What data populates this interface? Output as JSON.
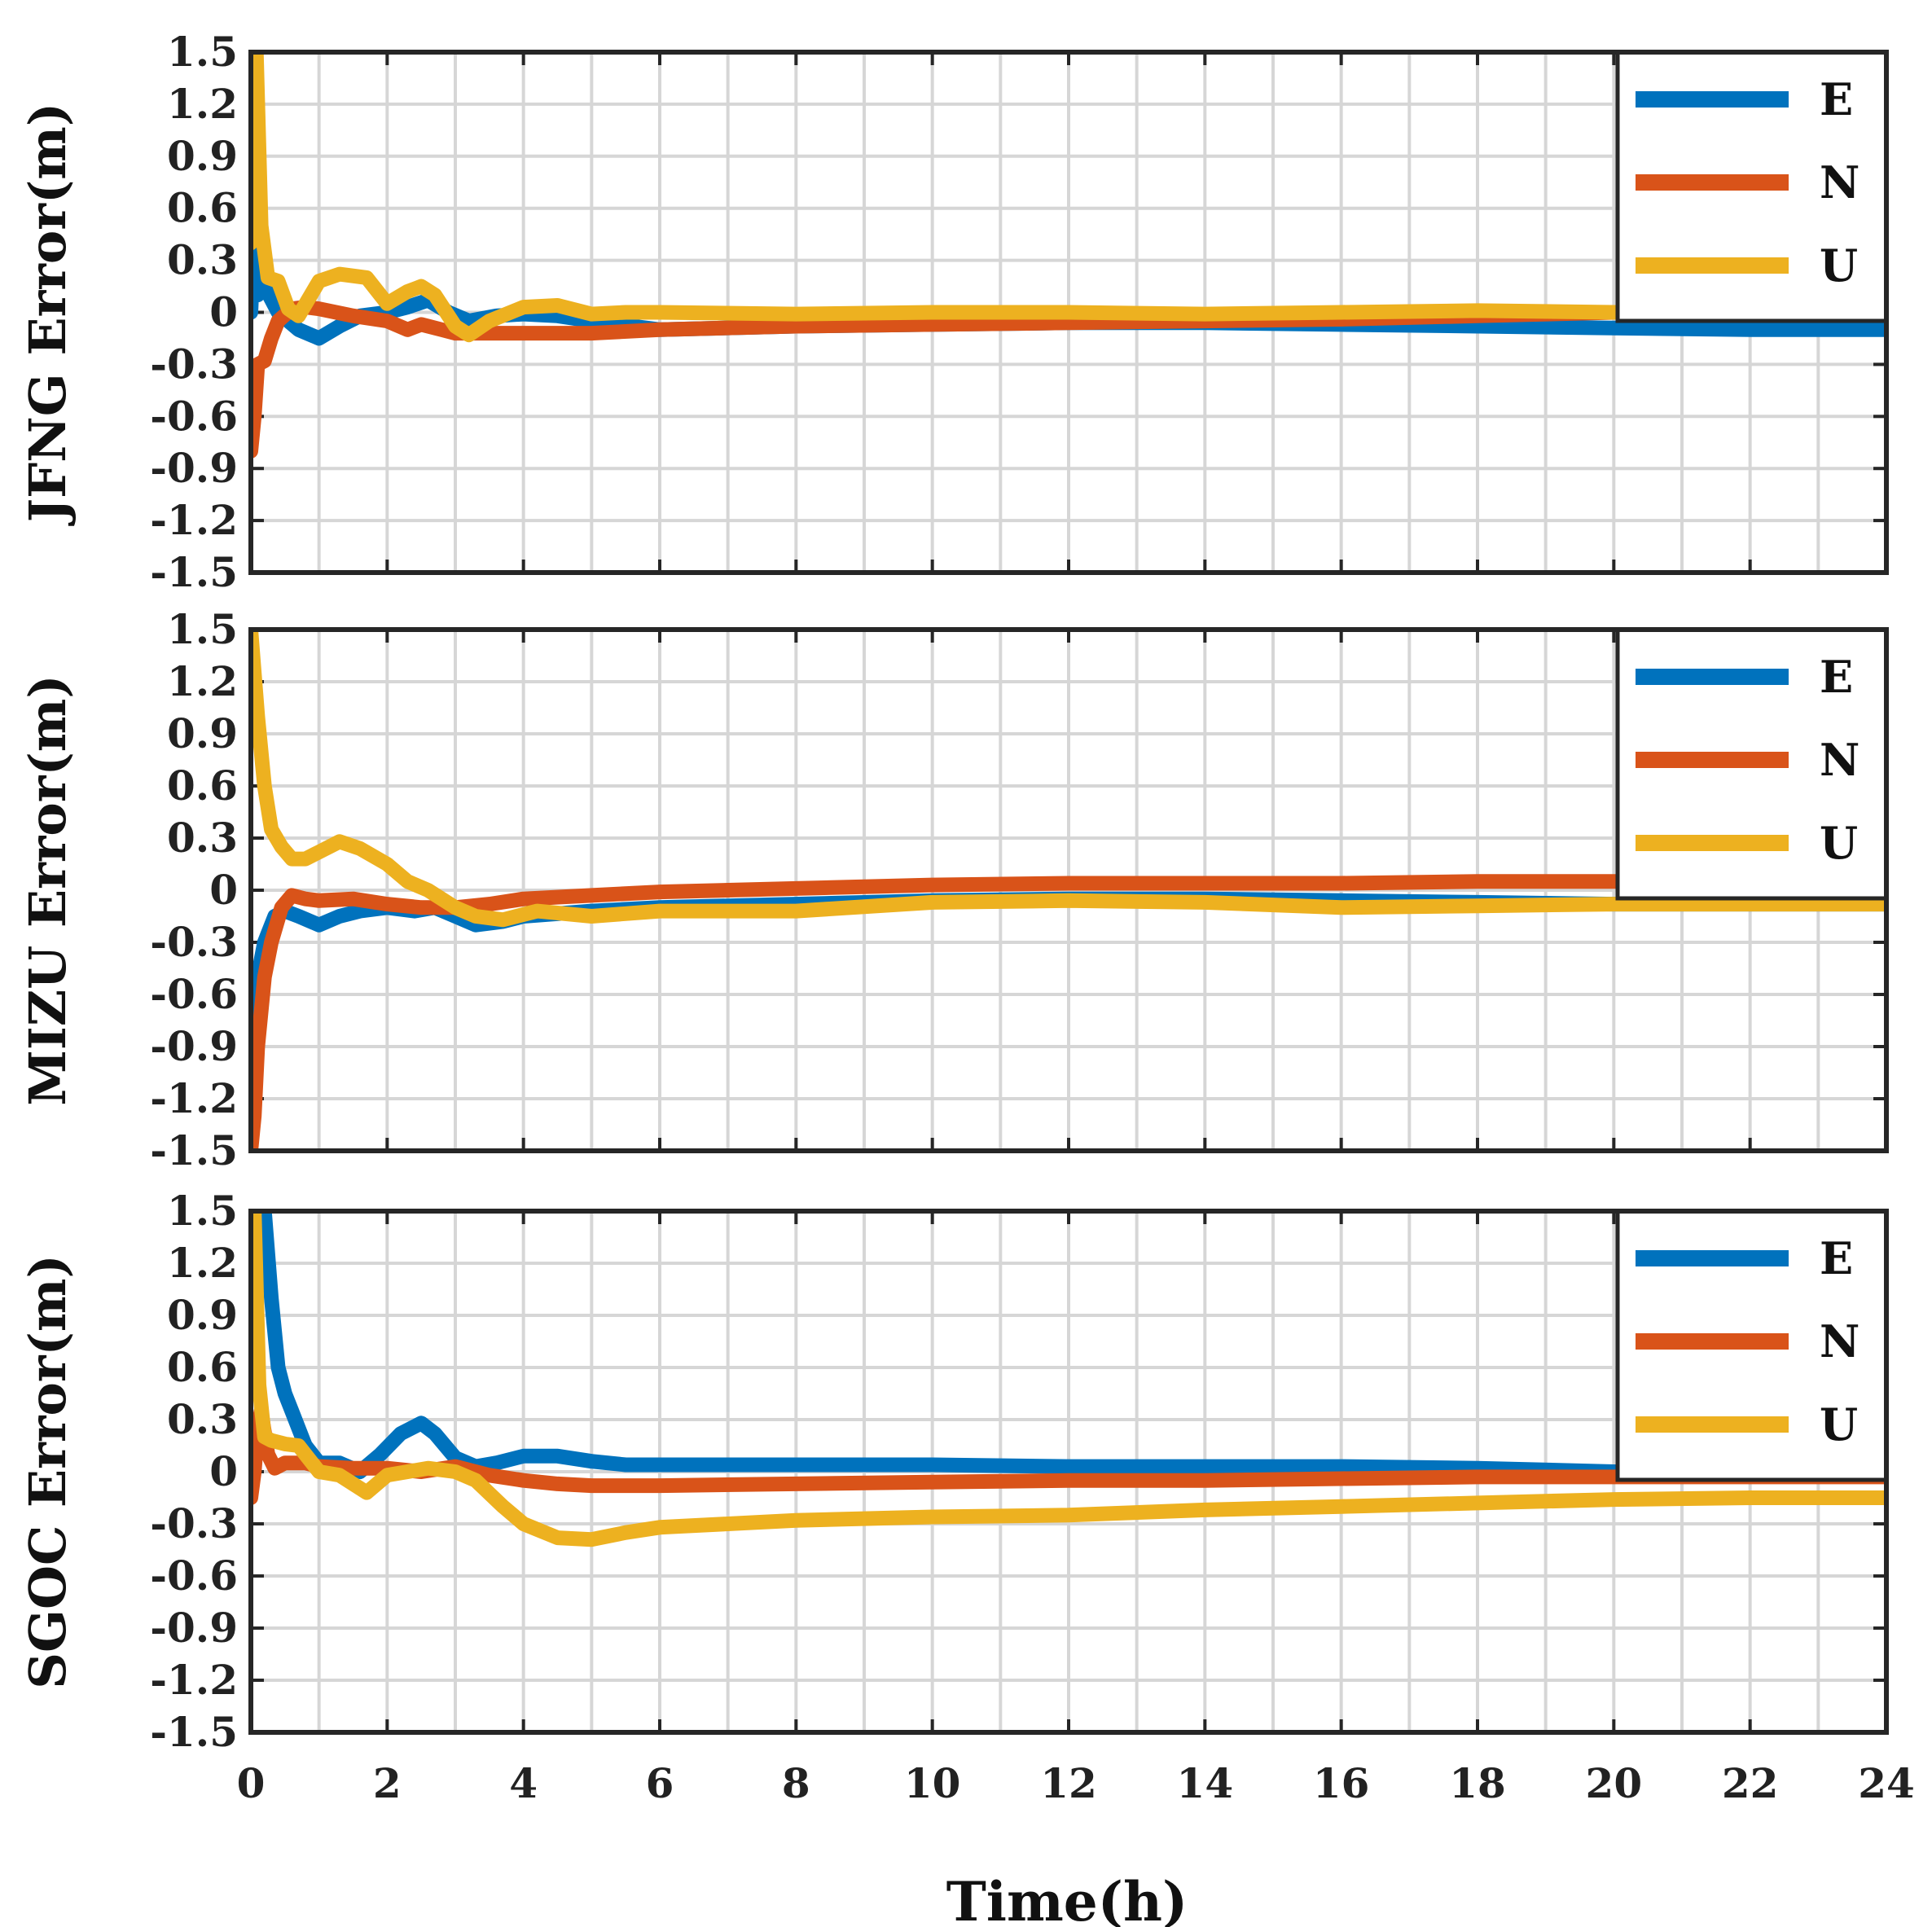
{
  "chart_data": [
    {
      "type": "line",
      "ylabel": "JFNG Error(m)",
      "xlim": [
        0,
        24
      ],
      "ylim": [
        -1.5,
        1.5
      ],
      "yticks": [
        1.5,
        1.2,
        0.9,
        0.6,
        0.3,
        0,
        -0.3,
        -0.6,
        -0.9,
        -1.2,
        -1.5
      ],
      "yticklabels": [
        "1.5",
        "1.2",
        "0.9",
        "0.6",
        "0.3",
        "0",
        "-0.3",
        "-0.6",
        "-0.9",
        "-1.2",
        "-1.5"
      ],
      "grid": true,
      "legend": "top-right",
      "series": [
        {
          "name": "E",
          "x": [
            0,
            0.05,
            0.1,
            0.2,
            0.4,
            0.7,
            1.0,
            1.3,
            1.6,
            2.0,
            2.3,
            2.6,
            2.9,
            3.2,
            3.6,
            4.0,
            4.5,
            5.0,
            6.0,
            8.0,
            10.0,
            12.0,
            14.0,
            16.0,
            18.0,
            20.0,
            22.0,
            24.0
          ],
          "y": [
            0.0,
            0.45,
            0.1,
            0.15,
            0.0,
            -0.1,
            -0.15,
            -0.08,
            -0.02,
            0.0,
            0.03,
            0.07,
            0.0,
            -0.05,
            -0.02,
            -0.01,
            -0.02,
            -0.05,
            -0.1,
            -0.08,
            -0.07,
            -0.06,
            -0.06,
            -0.07,
            -0.08,
            -0.09,
            -0.1,
            -0.1
          ]
        },
        {
          "name": "N",
          "x": [
            0,
            0.05,
            0.1,
            0.2,
            0.3,
            0.4,
            0.6,
            0.8,
            1.0,
            1.5,
            2.0,
            2.3,
            2.5,
            2.8,
            3.0,
            3.3,
            3.7,
            4.0,
            5.0,
            6.0,
            8.0,
            10.0,
            12.0,
            14.0,
            16.0,
            18.0,
            20.0,
            24.0
          ],
          "y": [
            -0.8,
            -0.6,
            -0.3,
            -0.28,
            -0.15,
            -0.05,
            0.02,
            0.03,
            0.02,
            -0.02,
            -0.05,
            -0.1,
            -0.07,
            -0.1,
            -0.12,
            -0.12,
            -0.12,
            -0.12,
            -0.12,
            -0.1,
            -0.08,
            -0.07,
            -0.06,
            -0.05,
            -0.04,
            -0.02,
            0.0,
            0.0
          ]
        },
        {
          "name": "U",
          "x": [
            0,
            0.08,
            0.15,
            0.25,
            0.4,
            0.55,
            0.7,
            1.0,
            1.3,
            1.7,
            2.0,
            2.3,
            2.5,
            2.7,
            3.0,
            3.2,
            3.5,
            4.0,
            4.5,
            5.0,
            5.5,
            6.0,
            8.0,
            10.0,
            12.0,
            14.0,
            16.0,
            18.0,
            20.0,
            24.0
          ],
          "y": [
            0.4,
            1.5,
            0.5,
            0.2,
            0.18,
            0.02,
            -0.02,
            0.18,
            0.22,
            0.2,
            0.05,
            0.12,
            0.15,
            0.1,
            -0.08,
            -0.13,
            -0.05,
            0.03,
            0.04,
            -0.01,
            0.0,
            0.0,
            -0.01,
            0.0,
            0.0,
            -0.01,
            0.0,
            0.01,
            0.0,
            0.0
          ]
        }
      ]
    },
    {
      "type": "line",
      "ylabel": "MIZU Error(m)",
      "xlim": [
        0,
        24
      ],
      "ylim": [
        -1.5,
        1.5
      ],
      "yticks": [
        1.5,
        1.2,
        0.9,
        0.6,
        0.3,
        0,
        -0.3,
        -0.6,
        -0.9,
        -1.2,
        -1.5
      ],
      "yticklabels": [
        "1.5",
        "1.2",
        "0.9",
        "0.6",
        "0.3",
        "0",
        "-0.3",
        "-0.6",
        "-0.9",
        "-1.2",
        "-1.5"
      ],
      "grid": true,
      "legend": "top-right",
      "series": [
        {
          "name": "E",
          "x": [
            0,
            0.05,
            0.1,
            0.2,
            0.35,
            0.5,
            0.7,
            1.0,
            1.3,
            1.6,
            2.0,
            2.4,
            2.7,
            3.0,
            3.3,
            3.7,
            4.0,
            5.0,
            6.0,
            8.0,
            10.0,
            12.0,
            14.0,
            16.0,
            18.0,
            20.0,
            24.0
          ],
          "y": [
            -0.9,
            -1.2,
            -0.5,
            -0.3,
            -0.15,
            -0.12,
            -0.15,
            -0.2,
            -0.15,
            -0.12,
            -0.1,
            -0.12,
            -0.1,
            -0.15,
            -0.2,
            -0.18,
            -0.15,
            -0.12,
            -0.1,
            -0.08,
            -0.06,
            -0.05,
            -0.05,
            -0.06,
            -0.07,
            -0.08,
            -0.08
          ]
        },
        {
          "name": "N",
          "x": [
            0,
            0.05,
            0.1,
            0.2,
            0.3,
            0.45,
            0.6,
            0.8,
            1.0,
            1.5,
            2.0,
            2.5,
            3.0,
            3.5,
            4.0,
            5.0,
            6.0,
            8.0,
            10.0,
            12.0,
            14.0,
            16.0,
            18.0,
            20.0,
            24.0
          ],
          "y": [
            -1.5,
            -1.3,
            -0.9,
            -0.5,
            -0.3,
            -0.1,
            -0.03,
            -0.05,
            -0.06,
            -0.05,
            -0.08,
            -0.1,
            -0.1,
            -0.08,
            -0.05,
            -0.03,
            -0.01,
            0.01,
            0.03,
            0.04,
            0.04,
            0.04,
            0.05,
            0.05,
            0.05
          ]
        },
        {
          "name": "U",
          "x": [
            0,
            0.1,
            0.2,
            0.3,
            0.45,
            0.6,
            0.8,
            1.0,
            1.3,
            1.6,
            2.0,
            2.3,
            2.6,
            3.0,
            3.3,
            3.7,
            4.2,
            5.0,
            6.0,
            8.0,
            10.0,
            12.0,
            14.0,
            16.0,
            18.0,
            20.0,
            24.0
          ],
          "y": [
            1.5,
            1.0,
            0.6,
            0.35,
            0.25,
            0.18,
            0.18,
            0.22,
            0.28,
            0.24,
            0.15,
            0.05,
            0.0,
            -0.1,
            -0.15,
            -0.17,
            -0.12,
            -0.15,
            -0.12,
            -0.12,
            -0.07,
            -0.06,
            -0.07,
            -0.1,
            -0.09,
            -0.08,
            -0.08
          ]
        }
      ]
    },
    {
      "type": "line",
      "ylabel": "SGOC Error(m)",
      "xlabel": "Time(h)",
      "xlim": [
        0,
        24
      ],
      "ylim": [
        -1.5,
        1.5
      ],
      "xticks": [
        0,
        2,
        4,
        6,
        8,
        10,
        12,
        14,
        16,
        18,
        20,
        22,
        24
      ],
      "xticklabels": [
        "0",
        "2",
        "4",
        "6",
        "8",
        "10",
        "12",
        "14",
        "16",
        "18",
        "20",
        "22",
        "24"
      ],
      "yticks": [
        1.5,
        1.2,
        0.9,
        0.6,
        0.3,
        0,
        -0.3,
        -0.6,
        -0.9,
        -1.2,
        -1.5
      ],
      "yticklabels": [
        "1.5",
        "1.2",
        "0.9",
        "0.6",
        "0.3",
        "0",
        "-0.3",
        "-0.6",
        "-0.9",
        "-1.2",
        "-1.5"
      ],
      "grid": true,
      "legend": "top-right",
      "series": [
        {
          "name": "E",
          "x": [
            0.2,
            0.3,
            0.4,
            0.5,
            0.6,
            0.8,
            1.0,
            1.3,
            1.6,
            1.9,
            2.2,
            2.5,
            2.7,
            3.0,
            3.3,
            3.6,
            4.0,
            4.5,
            5.0,
            5.5,
            6.0,
            8.0,
            10.0,
            12.0,
            14.0,
            16.0,
            18.0,
            20.0,
            24.0
          ],
          "y": [
            1.5,
            1.0,
            0.6,
            0.45,
            0.35,
            0.15,
            0.05,
            0.05,
            0.0,
            0.1,
            0.22,
            0.28,
            0.22,
            0.08,
            0.03,
            0.05,
            0.09,
            0.09,
            0.06,
            0.04,
            0.04,
            0.04,
            0.04,
            0.03,
            0.03,
            0.03,
            0.02,
            0.0,
            0.0
          ]
        },
        {
          "name": "N",
          "x": [
            0,
            0.05,
            0.1,
            0.15,
            0.25,
            0.35,
            0.5,
            0.8,
            1.0,
            1.5,
            2.0,
            2.5,
            3.0,
            3.5,
            4.0,
            4.5,
            5.0,
            6.0,
            8.0,
            10.0,
            12.0,
            14.0,
            16.0,
            18.0,
            20.0,
            24.0
          ],
          "y": [
            -0.15,
            0.0,
            0.25,
            0.35,
            0.1,
            0.02,
            0.05,
            0.05,
            0.03,
            0.02,
            0.02,
            0.0,
            0.03,
            -0.02,
            -0.05,
            -0.07,
            -0.08,
            -0.08,
            -0.07,
            -0.06,
            -0.05,
            -0.05,
            -0.04,
            -0.03,
            -0.03,
            -0.03
          ]
        },
        {
          "name": "U",
          "x": [
            0,
            0.05,
            0.12,
            0.2,
            0.3,
            0.5,
            0.7,
            0.8,
            1.0,
            1.3,
            1.7,
            2.0,
            2.3,
            2.6,
            3.0,
            3.3,
            3.7,
            4.0,
            4.5,
            5.0,
            5.5,
            6.0,
            8.0,
            10.0,
            12.0,
            14.0,
            16.0,
            18.0,
            20.0,
            22.0,
            24.0
          ],
          "y": [
            0.8,
            1.5,
            0.5,
            0.2,
            0.18,
            0.16,
            0.15,
            0.1,
            0.0,
            -0.02,
            -0.12,
            -0.02,
            0.0,
            0.02,
            0.0,
            -0.05,
            -0.2,
            -0.3,
            -0.38,
            -0.39,
            -0.35,
            -0.32,
            -0.28,
            -0.26,
            -0.25,
            -0.22,
            -0.2,
            -0.18,
            -0.16,
            -0.15,
            -0.15
          ]
        }
      ]
    }
  ],
  "colors": {
    "E": "#0072BD",
    "N": "#D95319",
    "U": "#EDB120"
  }
}
